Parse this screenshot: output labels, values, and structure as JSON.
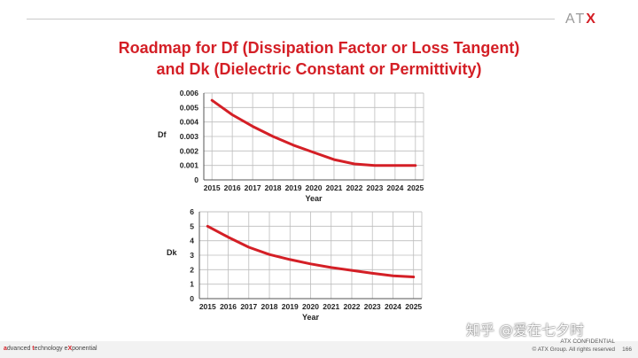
{
  "header": {
    "logo_prefix": "AT",
    "logo_x": "X"
  },
  "title": {
    "line1": "Roadmap for Df (Dissipation Factor or Loss Tangent)",
    "line2": "and Dk (Dielectric Constant or Permittivity)"
  },
  "chart_data": [
    {
      "type": "line",
      "x": [
        2015,
        2016,
        2017,
        2018,
        2019,
        2020,
        2021,
        2022,
        2023,
        2024,
        2025
      ],
      "series": [
        {
          "values": [
            0.0055,
            0.0045,
            0.0037,
            0.003,
            0.0024,
            0.0019,
            0.0014,
            0.0011,
            0.001,
            0.001,
            0.001
          ]
        }
      ],
      "xlabel": "Year",
      "ylabel": "Df",
      "xlim": [
        2014.6,
        2025.4
      ],
      "ylim": [
        0,
        0.006
      ],
      "yticks": [
        "0",
        "0.001",
        "0.002",
        "0.003",
        "0.004",
        "0.005",
        "0.006"
      ],
      "grid": true,
      "line_color": "#d41f26"
    },
    {
      "type": "line",
      "x": [
        2015,
        2016,
        2017,
        2018,
        2019,
        2020,
        2021,
        2022,
        2023,
        2024,
        2025
      ],
      "series": [
        {
          "values": [
            5,
            4.25,
            3.55,
            3.05,
            2.7,
            2.4,
            2.15,
            1.95,
            1.75,
            1.58,
            1.5
          ]
        }
      ],
      "xlabel": "Year",
      "ylabel": "Dk",
      "xlim": [
        2014.6,
        2025.4
      ],
      "ylim": [
        0,
        6
      ],
      "yticks": [
        "0",
        "1",
        "2",
        "3",
        "4",
        "5",
        "6"
      ],
      "grid": true,
      "line_color": "#d41f26"
    }
  ],
  "footer": {
    "tagline_a": "a",
    "tagline_1": "dvanced ",
    "tagline_t": "t",
    "tagline_2": "echnology e",
    "tagline_x": "X",
    "tagline_3": "ponential",
    "confidential": "ATX CONFIDENTIAL",
    "copyright": "© ATX Group. All rights reserved",
    "page_number": "166"
  },
  "watermark": "知乎 @爱在七夕时"
}
